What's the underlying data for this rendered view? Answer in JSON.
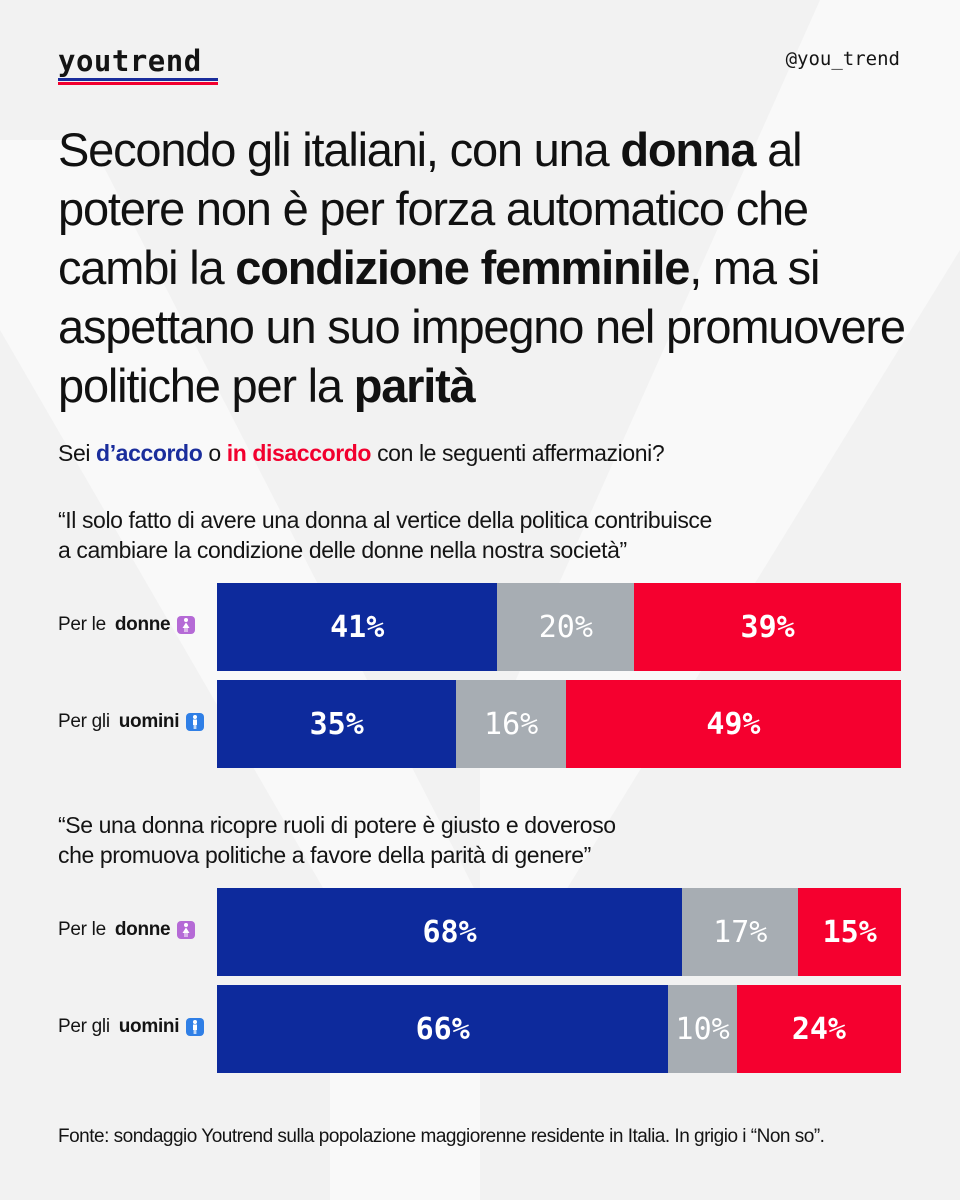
{
  "brand": {
    "logo": "youtrend",
    "handle": "@you_trend"
  },
  "headline": [
    {
      "text": "Secondo gli italiani, con una ",
      "bold": false
    },
    {
      "text": "donna",
      "bold": true
    },
    {
      "text": " al potere non è per forza automatico che cambi la ",
      "bold": false
    },
    {
      "text": "condizione femminile",
      "bold": true
    },
    {
      "text": ", ma si aspettano un suo impegno nel promuovere politiche per la ",
      "bold": false
    },
    {
      "text": "parità",
      "bold": true
    }
  ],
  "question": {
    "prefix": "Sei ",
    "agree": "d’accordo",
    "middle": " o ",
    "disagree": "in disaccordo",
    "suffix": " con le seguenti affermazioni?"
  },
  "colors": {
    "agree": "#0d2a9c",
    "unsure": "#a7adb3",
    "disagree": "#f5002f"
  },
  "chart_data": {
    "type": "bar",
    "orientation": "horizontal-stacked-100",
    "segments": [
      "d’accordo",
      "Non so",
      "in disaccordo"
    ],
    "groups": [
      {
        "statement_lines": [
          "“Il solo fatto di avere una donna al vertice della politica contribuisce",
          "a cambiare la condizione delle donne nella nostra società”"
        ],
        "rows": [
          {
            "prefix": "Per le ",
            "who": "donne",
            "icon": "woman-icon",
            "values": [
              41,
              20,
              39
            ],
            "labels": [
              "41%",
              "20%",
              "39%"
            ]
          },
          {
            "prefix": "Per gli ",
            "who": "uomini",
            "icon": "man-icon",
            "values": [
              35,
              16,
              49
            ],
            "labels": [
              "35%",
              "16%",
              "49%"
            ]
          }
        ]
      },
      {
        "statement_lines": [
          "“Se una donna ricopre ruoli di potere è giusto e doveroso",
          "che promuova politiche a favore della parità di genere”"
        ],
        "rows": [
          {
            "prefix": "Per le ",
            "who": "donne",
            "icon": "woman-icon",
            "values": [
              68,
              17,
              15
            ],
            "labels": [
              "68%",
              "17%",
              "15%"
            ]
          },
          {
            "prefix": "Per gli ",
            "who": "uomini",
            "icon": "man-icon",
            "values": [
              66,
              10,
              24
            ],
            "labels": [
              "66%",
              "10%",
              "24%"
            ]
          }
        ]
      }
    ]
  },
  "source": "Fonte: sondaggio Youtrend sulla popolazione maggiorenne residente in Italia. In grigio i “Non so”."
}
